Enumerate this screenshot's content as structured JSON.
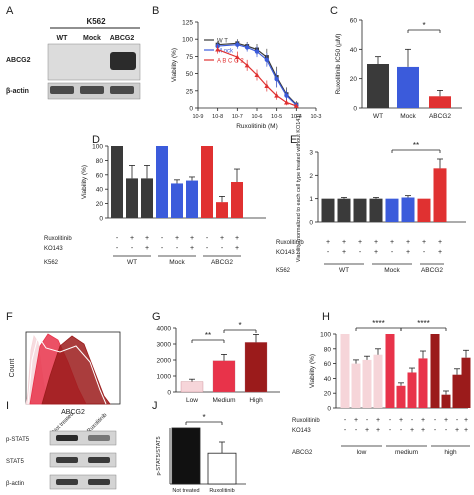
{
  "figure": {
    "panel_labels": [
      "A",
      "B",
      "C",
      "D",
      "E",
      "F",
      "G",
      "H",
      "I",
      "J"
    ],
    "colors": {
      "wt": "#3a3a3a",
      "mock": "#3b5bdb",
      "abcg2": "#e03131",
      "low": "#f6d5d9",
      "medium": "#e8334a",
      "high": "#9b1b1b"
    }
  },
  "panelA": {
    "title": "K562",
    "lanes": [
      "WT",
      "Mock",
      "ABCG2"
    ],
    "rows": [
      "ABCG2",
      "β-actin"
    ]
  },
  "panelI": {
    "lanes": [
      "Not treated",
      "Ruxolitinib"
    ],
    "rows": [
      "p-STAT5",
      "STAT5",
      "β-actin"
    ]
  },
  "chart_data": [
    {
      "panel": "B",
      "type": "line",
      "xlabel": "Ruxolitinib (M)",
      "ylabel": "Viability (%)",
      "xscale": "log",
      "xlim_exp": [
        -9,
        -3
      ],
      "xtick_labels": [
        "10-9",
        "10-8",
        "10-7",
        "10-6",
        "10-5",
        "10-4",
        "10-3"
      ],
      "ylim": [
        0,
        125
      ],
      "yticks": [
        0,
        25,
        50,
        75,
        100,
        125
      ],
      "legend": "top-left",
      "series": [
        {
          "name": "W T",
          "color": "#3a3a3a",
          "marker": "square",
          "log_x": [
            -8,
            -7,
            -6.5,
            -6,
            -5.5,
            -5,
            -4.5,
            -4
          ],
          "y": [
            92,
            94,
            90,
            85,
            74,
            45,
            20,
            5
          ],
          "err": [
            5,
            6,
            6,
            8,
            12,
            15,
            10,
            5
          ]
        },
        {
          "name": "M ock",
          "color": "#3b5bdb",
          "marker": "circle",
          "log_x": [
            -8,
            -7,
            -6.5,
            -6,
            -5.5,
            -5,
            -4.5,
            -4
          ],
          "y": [
            90,
            92,
            88,
            82,
            70,
            42,
            18,
            4
          ],
          "err": [
            5,
            6,
            6,
            8,
            10,
            12,
            8,
            4
          ]
        },
        {
          "name": "A B C G 2",
          "color": "#e03131",
          "marker": "triangle",
          "log_x": [
            -8,
            -7,
            -6.5,
            -6,
            -5.5,
            -5,
            -4.5,
            -4
          ],
          "y": [
            85,
            74,
            62,
            48,
            32,
            18,
            8,
            3
          ],
          "err": [
            6,
            8,
            8,
            8,
            8,
            6,
            4,
            3
          ]
        }
      ]
    },
    {
      "panel": "C",
      "type": "bar",
      "ylabel": "Ruxolitinib IC50 (µM)",
      "categories": [
        "WT",
        "Mock",
        "ABCG2"
      ],
      "values": [
        30,
        28,
        8
      ],
      "errors": [
        5,
        12,
        4
      ],
      "colors": [
        "#3a3a3a",
        "#3b5bdb",
        "#e03131"
      ],
      "ylim": [
        0,
        60
      ],
      "yticks": [
        0,
        20,
        40,
        60
      ],
      "annotation": "*"
    },
    {
      "panel": "D",
      "type": "bar",
      "ylabel": "Viability (%)",
      "values": [
        100,
        55,
        55,
        100,
        48,
        52,
        100,
        22,
        50
      ],
      "errors": [
        0,
        18,
        18,
        0,
        5,
        5,
        0,
        8,
        18
      ],
      "colors": [
        "#3a3a3a",
        "#3a3a3a",
        "#3a3a3a",
        "#3b5bdb",
        "#3b5bdb",
        "#3b5bdb",
        "#e03131",
        "#e03131",
        "#e03131"
      ],
      "ylim": [
        0,
        100
      ],
      "yticks": [
        0,
        20,
        40,
        60,
        80,
        100
      ],
      "condition_rows": [
        {
          "label": "Ruxolitinib",
          "marks": [
            "-",
            "+",
            "+",
            "-",
            "+",
            "+",
            "-",
            "+",
            "+"
          ]
        },
        {
          "label": "KO143",
          "marks": [
            "-",
            "-",
            "+",
            "-",
            "-",
            "+",
            "-",
            "-",
            "+"
          ]
        }
      ],
      "group_row_label": "K562",
      "groups": [
        "WT",
        "Mock",
        "ABCG2"
      ]
    },
    {
      "panel": "E",
      "type": "bar",
      "ylabel": "Viability (normalized to each cell type treated without KO143)",
      "values": [
        1.0,
        1.0,
        1.0,
        1.0,
        1.0,
        1.05,
        1.0,
        2.3
      ],
      "errors": [
        0,
        0.05,
        0,
        0.05,
        0,
        0.08,
        0,
        0.4
      ],
      "colors": [
        "#3a3a3a",
        "#3a3a3a",
        "#3a3a3a",
        "#3a3a3a",
        "#3b5bdb",
        "#3b5bdb",
        "#e03131",
        "#e03131"
      ],
      "ylim": [
        0,
        3
      ],
      "yticks": [
        0,
        1,
        2,
        3
      ],
      "annotation": "**",
      "condition_rows": [
        {
          "label": "Ruxolitinib",
          "marks": [
            "+",
            "+",
            "+",
            "+",
            "+",
            "+",
            "+",
            "+"
          ]
        },
        {
          "label": "KO143",
          "marks": [
            "-",
            "+",
            "-",
            "+",
            "-",
            "+",
            "-",
            "+"
          ]
        }
      ],
      "group_row_label": "K562",
      "groups": [
        "WT",
        "Mock",
        "ABCG2"
      ]
    },
    {
      "panel": "F",
      "type": "area",
      "xlabel": "ABCG2",
      "ylabel": "Count"
    },
    {
      "panel": "G",
      "type": "bar",
      "categories": [
        "Low",
        "Medium",
        "High"
      ],
      "values": [
        650,
        1950,
        3100
      ],
      "errors": [
        150,
        400,
        500
      ],
      "colors": [
        "#f6d5d9",
        "#e8334a",
        "#9b1b1b"
      ],
      "ylim": [
        0,
        4000
      ],
      "yticks": [
        0,
        1000,
        2000,
        3000,
        4000
      ],
      "annotations": [
        "**",
        "*"
      ]
    },
    {
      "panel": "H",
      "type": "bar",
      "ylabel": "Viability (%)",
      "values": [
        100,
        60,
        65,
        72,
        100,
        30,
        48,
        67,
        100,
        18,
        45,
        68
      ],
      "errors": [
        0,
        5,
        5,
        8,
        0,
        4,
        6,
        10,
        0,
        5,
        8,
        10
      ],
      "colors": [
        "#f6d5d9",
        "#f6d5d9",
        "#f6d5d9",
        "#f6d5d9",
        "#e8334a",
        "#e8334a",
        "#e8334a",
        "#e8334a",
        "#9b1b1b",
        "#9b1b1b",
        "#9b1b1b",
        "#9b1b1b"
      ],
      "ylim": [
        0,
        100
      ],
      "yticks": [
        0,
        20,
        40,
        60,
        80,
        100
      ],
      "annotations": [
        "****",
        "****"
      ],
      "condition_rows": [
        {
          "label": "Ruxolitinib",
          "marks": [
            "-",
            "+",
            "-",
            "+",
            "-",
            "+",
            "-",
            "+",
            "-",
            "+",
            "-",
            "+"
          ]
        },
        {
          "label": "KO143",
          "marks": [
            "-",
            "-",
            "+",
            "+",
            "-",
            "-",
            "+",
            "+",
            "-",
            "-",
            "+",
            "+"
          ]
        }
      ],
      "group_row_label": "ABCG2",
      "groups": [
        "low",
        "medium",
        "high"
      ]
    },
    {
      "panel": "J",
      "type": "bar",
      "ylabel": "p-STAT5/STAT5",
      "categories": [
        "Not treated",
        "Ruxolitinib"
      ],
      "values": [
        1.0,
        0.55
      ],
      "errors": [
        0,
        0.2
      ],
      "colors": [
        "#111111",
        "#ffffff"
      ],
      "ylim": [
        0,
        1
      ],
      "annotation": "*"
    }
  ]
}
